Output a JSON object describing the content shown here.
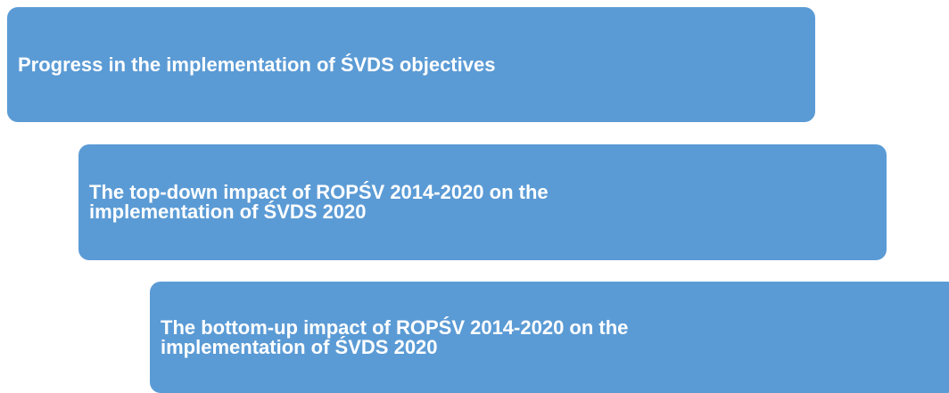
{
  "boxes": [
    {
      "label": "Progress in the implementation of ŚVDS objectives"
    },
    {
      "label": "The top-down impact of ROPŚV 2014-2020 on the implementation of ŚVDS 2020"
    },
    {
      "label": "The bottom-up impact of ROPŚV 2014-2020 on the implementation of ŚVDS 2020"
    }
  ]
}
